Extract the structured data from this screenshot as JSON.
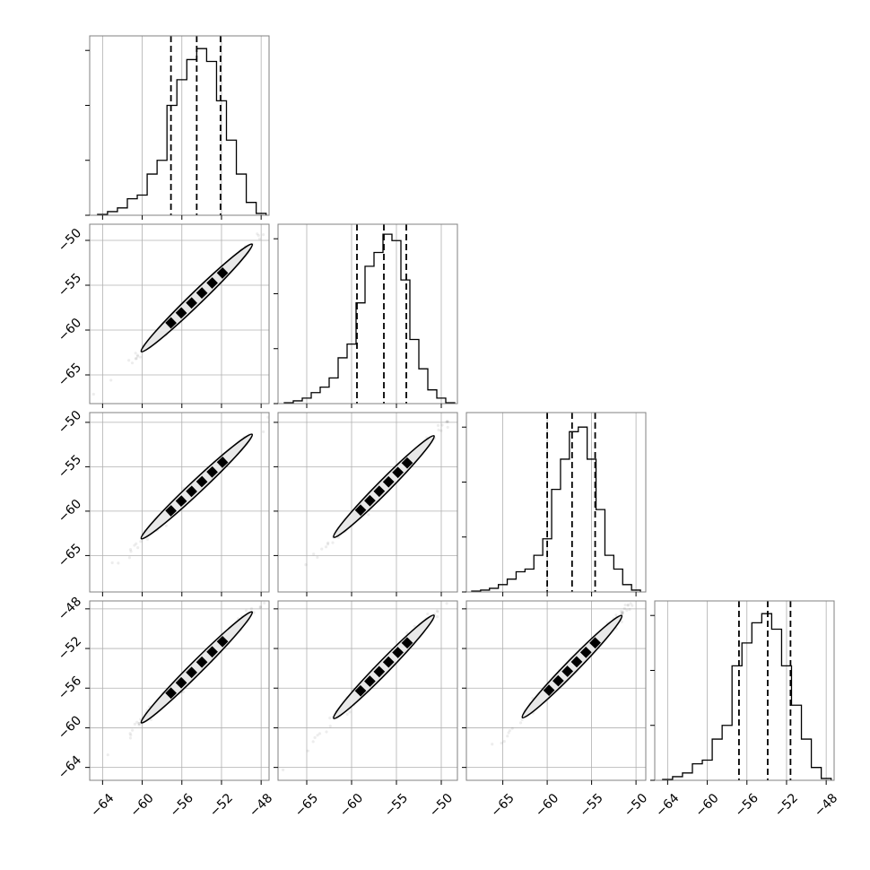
{
  "chart_data": {
    "type": "scatter",
    "title": "",
    "layout": "corner plot (4x4 lower-triangular)",
    "grid": true,
    "dimensions": [
      {
        "index": 0,
        "range": [
          -65.3,
          -47.2
        ],
        "ticks": [
          -64,
          -60,
          -56,
          -52,
          -48
        ],
        "median": -54.5,
        "quantiles": [
          -57.1,
          -54.5,
          -52.1
        ]
      },
      {
        "index": 1,
        "range": [
          -68.2,
          -48.2
        ],
        "ticks": [
          -65,
          -60,
          -55,
          -50
        ],
        "median": -56.4,
        "quantiles": [
          -59.4,
          -56.4,
          -53.9
        ]
      },
      {
        "index": 2,
        "range": [
          -69.1,
          -48.9
        ],
        "ticks": [
          -65,
          -60,
          -55,
          -50
        ],
        "median": -57.2,
        "quantiles": [
          -60.0,
          -57.2,
          -54.6
        ]
      },
      {
        "index": 3,
        "range": [
          -65.3,
          -47.2
        ],
        "ticks": [
          -64,
          -60,
          -56,
          -52,
          -48
        ],
        "median": -53.9,
        "quantiles": [
          -56.8,
          -53.9,
          -51.6
        ]
      }
    ],
    "histograms": [
      {
        "dim": 0,
        "bin_edges": [
          -64.5,
          -63.5,
          -62.5,
          -61.5,
          -60.5,
          -59.5,
          -58.5,
          -57.5,
          -56.5,
          -55.5,
          -54.5,
          -53.5,
          -52.5,
          -51.5,
          -50.5,
          -49.5,
          -48.5,
          -47.5
        ],
        "counts": [
          1,
          4,
          8,
          18,
          22,
          45,
          60,
          120,
          148,
          170,
          182,
          168,
          125,
          82,
          45,
          14,
          2
        ],
        "peak_count_axis": 190
      },
      {
        "dim": 1,
        "bin_edges": [
          -67.5,
          -66.5,
          -65.5,
          -64.5,
          -63.5,
          -62.5,
          -61.5,
          -60.5,
          -59.5,
          -58.5,
          -57.5,
          -56.5,
          -55.5,
          -54.5,
          -53.5,
          -52.5,
          -51.5,
          -50.5,
          -49.5,
          -48.5
        ],
        "counts": [
          1,
          3,
          6,
          12,
          18,
          28,
          50,
          65,
          110,
          150,
          165,
          185,
          178,
          135,
          70,
          38,
          15,
          6,
          1
        ],
        "peak_count_axis": 190
      },
      {
        "dim": 2,
        "bin_edges": [
          -68.5,
          -67.5,
          -66.5,
          -65.5,
          -64.5,
          -63.5,
          -62.5,
          -61.5,
          -60.5,
          -59.5,
          -58.5,
          -57.5,
          -56.5,
          -55.5,
          -54.5,
          -53.5,
          -52.5,
          -51.5,
          -50.5,
          -49.5
        ],
        "counts": [
          1,
          2,
          4,
          8,
          14,
          22,
          25,
          40,
          58,
          112,
          145,
          175,
          180,
          145,
          90,
          40,
          25,
          8,
          2
        ],
        "peak_count_axis": 190
      },
      {
        "dim": 3,
        "bin_edges": [
          -64.5,
          -63.5,
          -62.5,
          -61.5,
          -60.5,
          -59.5,
          -58.5,
          -57.5,
          -56.5,
          -55.5,
          -54.5,
          -53.5,
          -52.5,
          -51.5,
          -50.5,
          -49.5,
          -48.5,
          -47.5
        ],
        "counts": [
          1,
          4,
          8,
          18,
          22,
          45,
          60,
          125,
          150,
          172,
          182,
          165,
          125,
          82,
          45,
          14,
          2
        ],
        "peak_count_axis": 190
      }
    ],
    "pairs": [
      {
        "x_dim": 0,
        "y_dim": 1,
        "slope": 1.07,
        "intercept": 1.9
      },
      {
        "x_dim": 0,
        "y_dim": 2,
        "slope": 1.05,
        "intercept": 0.0
      },
      {
        "x_dim": 1,
        "y_dim": 2,
        "slope": 1.02,
        "intercept": 0.3
      },
      {
        "x_dim": 0,
        "y_dim": 3,
        "slope": 1.0,
        "intercept": 0.6
      },
      {
        "x_dim": 1,
        "y_dim": 3,
        "slope": 0.93,
        "intercept": -1.4
      },
      {
        "x_dim": 2,
        "y_dim": 3,
        "slope": 0.92,
        "intercept": -1.2
      }
    ],
    "contour_levels": [
      "0.5 sigma",
      "1 sigma",
      "1.5 sigma",
      "2 sigma"
    ],
    "colors": {
      "line": "#000000",
      "grid": "#b0b0b0",
      "frame": "#808080",
      "fill": "#e8e8e8"
    }
  }
}
